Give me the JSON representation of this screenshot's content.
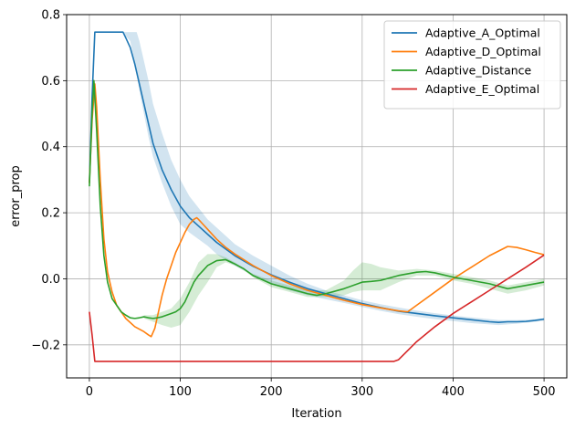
{
  "chart_data": {
    "type": "line",
    "title": "",
    "xlabel": "Iteration",
    "ylabel": "error_prop",
    "xlim": [
      -25,
      525
    ],
    "ylim": [
      -0.3,
      0.8
    ],
    "xticks": [
      0,
      100,
      200,
      300,
      400,
      500
    ],
    "yticks": [
      -0.2,
      0.0,
      0.2,
      0.4,
      0.6,
      0.8
    ],
    "xtick_labels": [
      "0",
      "100",
      "200",
      "300",
      "400",
      "500"
    ],
    "ytick_labels": [
      "−0.2",
      "0.0",
      "0.2",
      "0.4",
      "0.6",
      "0.8"
    ],
    "grid": true,
    "legend_position": "top-right",
    "series": [
      {
        "name": "Adaptive_A_Optimal",
        "color": "#1f77b4",
        "x": [
          0,
          3,
          6,
          10,
          20,
          30,
          37,
          40,
          45,
          50,
          55,
          60,
          65,
          70,
          75,
          80,
          90,
          100,
          110,
          120,
          130,
          140,
          150,
          160,
          180,
          200,
          220,
          240,
          260,
          280,
          300,
          320,
          340,
          360,
          380,
          400,
          420,
          440,
          450,
          460,
          470,
          480,
          490,
          500
        ],
        "y": [
          0.29,
          0.55,
          0.747,
          0.747,
          0.747,
          0.747,
          0.747,
          0.73,
          0.7,
          0.65,
          0.59,
          0.53,
          0.47,
          0.41,
          0.37,
          0.33,
          0.27,
          0.22,
          0.185,
          0.16,
          0.135,
          0.11,
          0.09,
          0.07,
          0.038,
          0.012,
          -0.01,
          -0.03,
          -0.045,
          -0.06,
          -0.075,
          -0.087,
          -0.098,
          -0.105,
          -0.112,
          -0.118,
          -0.124,
          -0.13,
          -0.132,
          -0.13,
          -0.13,
          -0.129,
          -0.126,
          -0.122
        ]
      },
      {
        "name": "Adaptive_D_Optimal",
        "color": "#ff7f0e",
        "x": [
          0,
          3,
          6,
          8,
          12,
          16,
          20,
          25,
          30,
          35,
          40,
          50,
          60,
          65,
          68,
          72,
          76,
          80,
          85,
          90,
          95,
          100,
          105,
          110,
          115,
          118,
          120,
          125,
          130,
          140,
          150,
          160,
          180,
          200,
          220,
          240,
          260,
          280,
          300,
          320,
          340,
          350,
          360,
          380,
          400,
          420,
          440,
          460,
          470,
          480,
          490,
          500
        ],
        "y": [
          0.29,
          0.48,
          0.59,
          0.52,
          0.3,
          0.12,
          0.02,
          -0.04,
          -0.08,
          -0.1,
          -0.12,
          -0.145,
          -0.16,
          -0.17,
          -0.175,
          -0.15,
          -0.1,
          -0.05,
          0.0,
          0.04,
          0.08,
          0.11,
          0.14,
          0.165,
          0.18,
          0.185,
          0.18,
          0.165,
          0.15,
          0.12,
          0.095,
          0.075,
          0.04,
          0.01,
          -0.015,
          -0.035,
          -0.05,
          -0.065,
          -0.078,
          -0.088,
          -0.097,
          -0.1,
          -0.08,
          -0.04,
          0.0,
          0.035,
          0.07,
          0.098,
          0.095,
          0.088,
          0.08,
          0.073
        ]
      },
      {
        "name": "Adaptive_Distance",
        "color": "#2ca02c",
        "x": [
          0,
          3,
          5,
          8,
          12,
          16,
          20,
          25,
          30,
          35,
          40,
          45,
          50,
          55,
          60,
          65,
          70,
          75,
          80,
          85,
          90,
          95,
          100,
          105,
          110,
          115,
          120,
          125,
          130,
          140,
          150,
          160,
          170,
          180,
          200,
          220,
          240,
          250,
          260,
          280,
          300,
          310,
          320,
          340,
          360,
          370,
          380,
          400,
          420,
          440,
          460,
          480,
          500
        ],
        "y": [
          0.28,
          0.5,
          0.6,
          0.45,
          0.22,
          0.07,
          -0.01,
          -0.06,
          -0.08,
          -0.1,
          -0.11,
          -0.118,
          -0.12,
          -0.118,
          -0.115,
          -0.118,
          -0.12,
          -0.118,
          -0.115,
          -0.11,
          -0.105,
          -0.1,
          -0.09,
          -0.07,
          -0.04,
          -0.01,
          0.01,
          0.025,
          0.04,
          0.055,
          0.058,
          0.045,
          0.03,
          0.01,
          -0.015,
          -0.03,
          -0.045,
          -0.05,
          -0.045,
          -0.03,
          -0.01,
          -0.008,
          -0.005,
          0.01,
          0.02,
          0.022,
          0.018,
          0.005,
          -0.005,
          -0.015,
          -0.03,
          -0.02,
          -0.01
        ]
      },
      {
        "name": "Adaptive_E_Optimal",
        "color": "#d62728",
        "x": [
          0,
          3,
          6,
          10,
          50,
          100,
          150,
          200,
          250,
          300,
          330,
          335,
          340,
          360,
          380,
          400,
          420,
          440,
          460,
          480,
          500
        ],
        "y": [
          -0.1,
          -0.17,
          -0.25,
          -0.25,
          -0.25,
          -0.25,
          -0.25,
          -0.25,
          -0.25,
          -0.25,
          -0.25,
          -0.25,
          -0.245,
          -0.19,
          -0.145,
          -0.105,
          -0.07,
          -0.035,
          0.0,
          0.035,
          0.072
        ]
      }
    ],
    "bands": [
      {
        "series": "Adaptive_A_Optimal",
        "color": "#1f77b4",
        "opacity": 0.2,
        "x": [
          36,
          45,
          52,
          55,
          60,
          65,
          70,
          80,
          90,
          100,
          110,
          120,
          130,
          140,
          150,
          160,
          180,
          200,
          220,
          240,
          260,
          280,
          300,
          320,
          340,
          360,
          380,
          400,
          420,
          440,
          450,
          460,
          470,
          480,
          490,
          500
        ],
        "upper": [
          0.747,
          0.747,
          0.747,
          0.72,
          0.66,
          0.6,
          0.53,
          0.44,
          0.36,
          0.3,
          0.25,
          0.215,
          0.18,
          0.155,
          0.13,
          0.105,
          0.07,
          0.04,
          0.01,
          -0.015,
          -0.035,
          -0.05,
          -0.065,
          -0.077,
          -0.087,
          -0.096,
          -0.104,
          -0.111,
          -0.117,
          -0.122,
          -0.125,
          -0.125,
          -0.125,
          -0.124,
          -0.122,
          -0.12
        ],
        "lower": [
          0.747,
          0.72,
          0.62,
          0.57,
          0.5,
          0.43,
          0.37,
          0.29,
          0.22,
          0.165,
          0.14,
          0.12,
          0.1,
          0.075,
          0.055,
          0.04,
          0.01,
          -0.015,
          -0.035,
          -0.05,
          -0.062,
          -0.073,
          -0.085,
          -0.097,
          -0.107,
          -0.115,
          -0.122,
          -0.128,
          -0.134,
          -0.138,
          -0.14,
          -0.138,
          -0.136,
          -0.133,
          -0.13,
          -0.127
        ]
      },
      {
        "series": "Adaptive_Distance",
        "color": "#2ca02c",
        "opacity": 0.2,
        "x": [
          60,
          70,
          80,
          90,
          100,
          110,
          120,
          130,
          140,
          150,
          160,
          170,
          180,
          200,
          220,
          240,
          260,
          280,
          290,
          300,
          310,
          320,
          340,
          360,
          380,
          400,
          420,
          440,
          460,
          480,
          500
        ],
        "upper": [
          -0.11,
          -0.11,
          -0.1,
          -0.09,
          -0.06,
          -0.01,
          0.05,
          0.075,
          0.075,
          0.065,
          0.05,
          0.03,
          0.015,
          -0.005,
          -0.02,
          -0.035,
          -0.035,
          -0.005,
          0.025,
          0.05,
          0.045,
          0.035,
          0.025,
          0.03,
          0.025,
          0.015,
          0.005,
          -0.005,
          -0.02,
          -0.01,
          0.0
        ],
        "lower": [
          -0.12,
          -0.13,
          -0.14,
          -0.148,
          -0.14,
          -0.1,
          -0.05,
          -0.01,
          0.035,
          0.05,
          0.04,
          0.025,
          0.005,
          -0.025,
          -0.04,
          -0.055,
          -0.055,
          -0.05,
          -0.04,
          -0.035,
          -0.035,
          -0.035,
          -0.01,
          0.01,
          0.01,
          -0.005,
          -0.015,
          -0.03,
          -0.045,
          -0.035,
          -0.02
        ]
      }
    ]
  }
}
